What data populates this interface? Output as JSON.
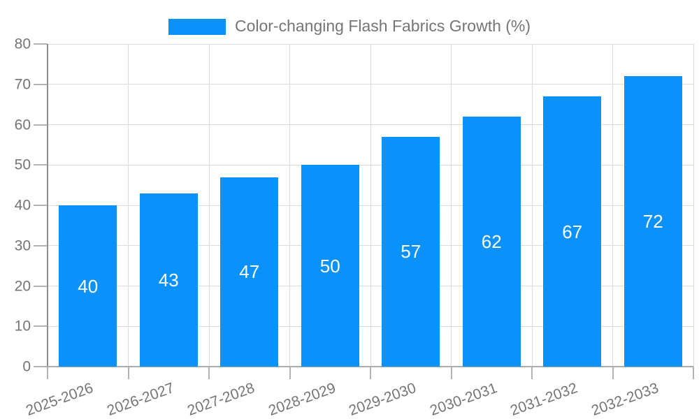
{
  "chart_data": {
    "type": "bar",
    "title": "Color-changing Flash Fabrics Growth (%)",
    "categories": [
      "2025-2026",
      "2026-2027",
      "2027-2028",
      "2028-2029",
      "2029-2030",
      "2030-2031",
      "2031-2032",
      "2032-2033"
    ],
    "values": [
      40,
      43,
      47,
      50,
      57,
      62,
      67,
      72
    ],
    "series_name": "Color-changing Flash Fabrics Growth (%)",
    "xlabel": "",
    "ylabel": "",
    "ylim": [
      0,
      80
    ],
    "y_ticks": [
      0,
      10,
      20,
      30,
      40,
      50,
      60,
      70,
      80
    ],
    "grid": true,
    "legend_position": "top-center",
    "value_label_position": "inside-center",
    "x_label_rotation_deg": -20,
    "colors": {
      "bar": "#0a91fa",
      "grid": "#dcdcdc",
      "axis_text": "#757575",
      "value_label_text": "#ffffff",
      "y_axis_line": "#8e8e8e",
      "x_axis_line": "#ababab",
      "tick": "#b3b3b3"
    }
  }
}
